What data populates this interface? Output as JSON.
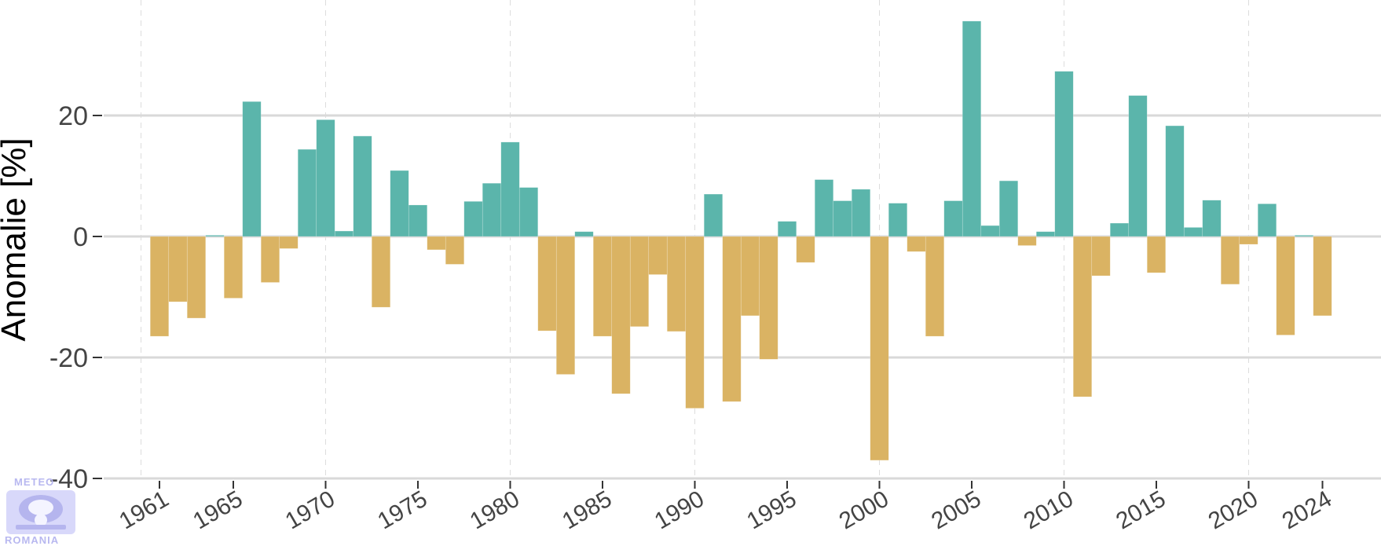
{
  "chart_data": {
    "type": "bar",
    "title": "",
    "xlabel": "",
    "ylabel": "Anomalie [%]",
    "ylim": [
      -40,
      38
    ],
    "yticks": [
      -40,
      -20,
      0,
      20
    ],
    "xticks": [
      1961,
      1965,
      1970,
      1975,
      1980,
      1985,
      1990,
      1995,
      2000,
      2005,
      2010,
      2015,
      2020,
      2024
    ],
    "x_gridlines": [
      1960,
      1970,
      1980,
      1990,
      2000,
      2010,
      2020
    ],
    "grid": true,
    "legend": "none",
    "colors": {
      "positive": "#5BB5AB",
      "negative": "#DAB363"
    },
    "x": [
      1961,
      1962,
      1963,
      1964,
      1965,
      1966,
      1967,
      1968,
      1969,
      1970,
      1971,
      1972,
      1973,
      1974,
      1975,
      1976,
      1977,
      1978,
      1979,
      1980,
      1981,
      1982,
      1983,
      1984,
      1985,
      1986,
      1987,
      1988,
      1989,
      1990,
      1991,
      1992,
      1993,
      1994,
      1995,
      1996,
      1997,
      1998,
      1999,
      2000,
      2001,
      2002,
      2003,
      2004,
      2005,
      2006,
      2007,
      2008,
      2009,
      2010,
      2011,
      2012,
      2013,
      2014,
      2015,
      2016,
      2017,
      2018,
      2019,
      2020,
      2021,
      2022,
      2023,
      2024
    ],
    "values": [
      -16.5,
      -10.8,
      -13.5,
      0.2,
      -10.2,
      22.3,
      -7.6,
      -2.0,
      14.4,
      19.3,
      0.9,
      16.6,
      -11.7,
      10.9,
      5.2,
      -2.2,
      -4.6,
      5.8,
      8.8,
      15.6,
      8.1,
      -15.6,
      -22.8,
      0.8,
      -16.5,
      -26.0,
      -14.9,
      -6.3,
      -15.7,
      -28.4,
      7.0,
      -27.3,
      -13.1,
      -20.3,
      2.5,
      -4.3,
      9.4,
      5.9,
      7.8,
      -37.0,
      5.5,
      -2.5,
      -16.5,
      5.9,
      35.6,
      1.8,
      9.2,
      -1.5,
      0.8,
      27.3,
      -26.5,
      -6.5,
      2.2,
      23.3,
      -6.0,
      18.3,
      1.5,
      6.0,
      -7.9,
      -1.3,
      5.4,
      -16.3,
      0.2,
      -13.1
    ]
  },
  "logo": {
    "text_top": "METEO",
    "text_bottom": "ROMANIA"
  }
}
